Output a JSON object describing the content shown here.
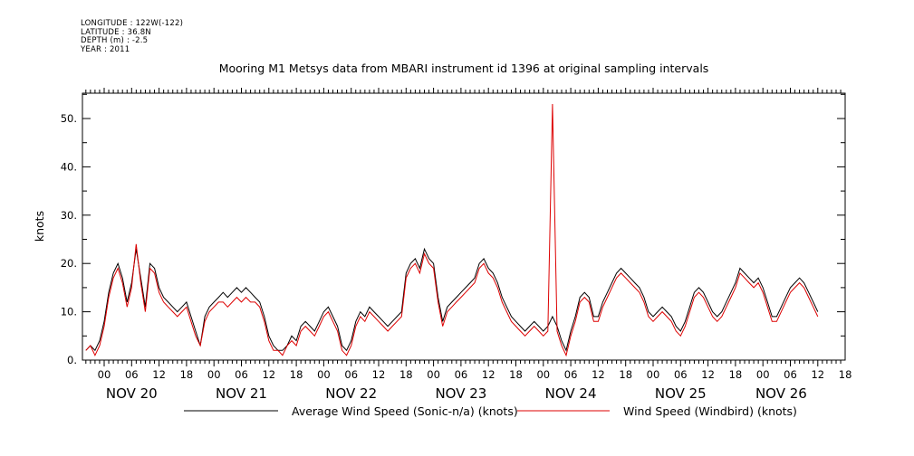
{
  "header": {
    "longitude": "LONGITUDE : 122W(-122)",
    "latitude": "LATITUDE : 36.8N",
    "depth": "DEPTH (m) : -2.5",
    "year": "YEAR : 2011"
  },
  "colors": {
    "series_black": "#000000",
    "series_red": "#dd0000",
    "axis": "#000000",
    "background": "#ffffff"
  },
  "chart_data": {
    "type": "line",
    "title": "Mooring M1 Metsys data from MBARI instrument id 1396 at original sampling intervals",
    "xlabel": "",
    "ylabel": "knots",
    "xlim_hours": [
      -4,
      156
    ],
    "ylim": [
      0,
      55
    ],
    "y_ticks": [
      0,
      10,
      20,
      30,
      40,
      50
    ],
    "y_tick_labels": [
      "0.",
      "10.",
      "20.",
      "30.",
      "40.",
      "50."
    ],
    "x_hour_tick_labels": [
      {
        "h": 0,
        "label": "00"
      },
      {
        "h": 6,
        "label": "06"
      },
      {
        "h": 12,
        "label": "12"
      },
      {
        "h": 18,
        "label": "18"
      },
      {
        "h": 24,
        "label": "00"
      },
      {
        "h": 30,
        "label": "06"
      },
      {
        "h": 36,
        "label": "12"
      },
      {
        "h": 42,
        "label": "18"
      },
      {
        "h": 48,
        "label": "00"
      },
      {
        "h": 54,
        "label": "06"
      },
      {
        "h": 60,
        "label": "12"
      },
      {
        "h": 66,
        "label": "18"
      },
      {
        "h": 72,
        "label": "00"
      },
      {
        "h": 78,
        "label": "06"
      },
      {
        "h": 84,
        "label": "12"
      },
      {
        "h": 90,
        "label": "18"
      },
      {
        "h": 96,
        "label": "00"
      },
      {
        "h": 102,
        "label": "06"
      },
      {
        "h": 108,
        "label": "12"
      },
      {
        "h": 114,
        "label": "18"
      },
      {
        "h": 120,
        "label": "00"
      },
      {
        "h": 126,
        "label": "06"
      },
      {
        "h": 132,
        "label": "12"
      },
      {
        "h": 138,
        "label": "18"
      },
      {
        "h": 144,
        "label": "00"
      },
      {
        "h": 150,
        "label": "06"
      },
      {
        "h": 156,
        "label": "12"
      },
      {
        "h": 162,
        "label": "18"
      }
    ],
    "day_labels": [
      {
        "h": 6,
        "label": "NOV 20"
      },
      {
        "h": 30,
        "label": "NOV 21"
      },
      {
        "h": 54,
        "label": "NOV 22"
      },
      {
        "h": 78,
        "label": "NOV 23"
      },
      {
        "h": 102,
        "label": "NOV 24"
      },
      {
        "h": 126,
        "label": "NOV 25"
      },
      {
        "h": 148,
        "label": "NOV 26"
      }
    ],
    "series": [
      {
        "name": "Average Wind Speed (Sonic-n/a) (knots)",
        "color": "#000000",
        "x": [
          -4,
          -3,
          -2,
          -1,
          0,
          1,
          2,
          3,
          4,
          5,
          6,
          7,
          8,
          9,
          10,
          11,
          12,
          13,
          14,
          15,
          16,
          17,
          18,
          19,
          20,
          21,
          22,
          23,
          24,
          25,
          26,
          27,
          28,
          29,
          30,
          31,
          32,
          33,
          34,
          35,
          36,
          37,
          38,
          39,
          40,
          41,
          42,
          43,
          44,
          45,
          46,
          47,
          48,
          49,
          50,
          51,
          52,
          53,
          54,
          55,
          56,
          57,
          58,
          59,
          60,
          61,
          62,
          63,
          64,
          65,
          66,
          67,
          68,
          69,
          70,
          71,
          72,
          73,
          74,
          75,
          76,
          77,
          78,
          79,
          80,
          81,
          82,
          83,
          84,
          85,
          86,
          87,
          88,
          89,
          90,
          91,
          92,
          93,
          94,
          95,
          96,
          97,
          98,
          99,
          100,
          101,
          102,
          103,
          104,
          105,
          106,
          107,
          108,
          109,
          110,
          111,
          112,
          113,
          114,
          115,
          116,
          117,
          118,
          119,
          120,
          121,
          122,
          123,
          124,
          125,
          126,
          127,
          128,
          129,
          130,
          131,
          132,
          133,
          134,
          135,
          136,
          137,
          138,
          139,
          140,
          141,
          142,
          143,
          144,
          145,
          146,
          147,
          148,
          149,
          150,
          151,
          152,
          153,
          154,
          155,
          156
        ],
        "values": [
          2,
          3,
          2,
          4,
          8,
          14,
          18,
          20,
          17,
          12,
          16,
          23,
          17,
          11,
          20,
          19,
          15,
          13,
          12,
          11,
          10,
          11,
          12,
          9,
          6,
          3,
          9,
          11,
          12,
          13,
          14,
          13,
          14,
          15,
          14,
          15,
          14,
          13,
          12,
          9,
          5,
          3,
          2,
          2,
          3,
          5,
          4,
          7,
          8,
          7,
          6,
          8,
          10,
          11,
          9,
          7,
          3,
          2,
          4,
          8,
          10,
          9,
          11,
          10,
          9,
          8,
          7,
          8,
          9,
          10,
          18,
          20,
          21,
          19,
          23,
          21,
          20,
          13,
          8,
          11,
          12,
          13,
          14,
          15,
          16,
          17,
          20,
          21,
          19,
          18,
          16,
          13,
          11,
          9,
          8,
          7,
          6,
          7,
          8,
          7,
          6,
          7,
          9,
          7,
          4,
          2,
          6,
          9,
          13,
          14,
          13,
          9,
          9,
          12,
          14,
          16,
          18,
          19,
          18,
          17,
          16,
          15,
          13,
          10,
          9,
          10,
          11,
          10,
          9,
          7,
          6,
          8,
          11,
          14,
          15,
          14,
          12,
          10,
          9,
          10,
          12,
          14,
          16,
          19,
          18,
          17,
          16,
          17,
          15,
          12,
          9,
          9,
          11,
          13,
          15,
          16,
          17,
          16,
          14,
          12,
          10
        ]
      },
      {
        "name": "Wind Speed (Windbird) (knots)",
        "color": "#dd0000",
        "x": [
          -4,
          -3,
          -2,
          -1,
          0,
          1,
          2,
          3,
          4,
          5,
          6,
          7,
          8,
          9,
          10,
          11,
          12,
          13,
          14,
          15,
          16,
          17,
          18,
          19,
          20,
          21,
          22,
          23,
          24,
          25,
          26,
          27,
          28,
          29,
          30,
          31,
          32,
          33,
          34,
          35,
          36,
          37,
          38,
          39,
          40,
          41,
          42,
          43,
          44,
          45,
          46,
          47,
          48,
          49,
          50,
          51,
          52,
          53,
          54,
          55,
          56,
          57,
          58,
          59,
          60,
          61,
          62,
          63,
          64,
          65,
          66,
          67,
          68,
          69,
          70,
          71,
          72,
          73,
          74,
          75,
          76,
          77,
          78,
          79,
          80,
          81,
          82,
          83,
          84,
          85,
          86,
          87,
          88,
          89,
          90,
          91,
          92,
          93,
          94,
          95,
          96,
          97,
          98,
          99,
          100,
          101,
          102,
          103,
          104,
          105,
          106,
          107,
          108,
          109,
          110,
          111,
          112,
          113,
          114,
          115,
          116,
          117,
          118,
          119,
          120,
          121,
          122,
          123,
          124,
          125,
          126,
          127,
          128,
          129,
          130,
          131,
          132,
          133,
          134,
          135,
          136,
          137,
          138,
          139,
          140,
          141,
          142,
          143,
          144,
          145,
          146,
          147,
          148,
          149,
          150,
          151,
          152,
          153,
          154,
          155,
          156
        ],
        "values": [
          2,
          3,
          1,
          3,
          7,
          13,
          17,
          19,
          16,
          11,
          15,
          24,
          16,
          10,
          19,
          18,
          14,
          12,
          11,
          10,
          9,
          10,
          11,
          8,
          5,
          3,
          8,
          10,
          11,
          12,
          12,
          11,
          12,
          13,
          12,
          13,
          12,
          12,
          11,
          8,
          4,
          2,
          2,
          1,
          3,
          4,
          3,
          6,
          7,
          6,
          5,
          7,
          9,
          10,
          8,
          6,
          2,
          1,
          3,
          7,
          9,
          8,
          10,
          9,
          8,
          7,
          6,
          7,
          8,
          9,
          17,
          19,
          20,
          18,
          22,
          20,
          19,
          12,
          7,
          10,
          11,
          12,
          13,
          14,
          15,
          16,
          19,
          20,
          18,
          17,
          15,
          12,
          10,
          8,
          7,
          6,
          5,
          6,
          7,
          6,
          5,
          6,
          53,
          6,
          3,
          1,
          5,
          8,
          12,
          13,
          12,
          8,
          8,
          11,
          13,
          15,
          17,
          18,
          17,
          16,
          15,
          14,
          12,
          9,
          8,
          9,
          10,
          9,
          8,
          6,
          5,
          7,
          10,
          13,
          14,
          13,
          11,
          9,
          8,
          9,
          11,
          13,
          15,
          18,
          17,
          16,
          15,
          16,
          14,
          11,
          8,
          8,
          10,
          12,
          14,
          15,
          16,
          15,
          13,
          11,
          9
        ]
      }
    ]
  },
  "legend": {
    "black_label": "Average Wind Speed (Sonic-n/a) (knots)",
    "red_label": "Wind Speed (Windbird) (knots)"
  }
}
